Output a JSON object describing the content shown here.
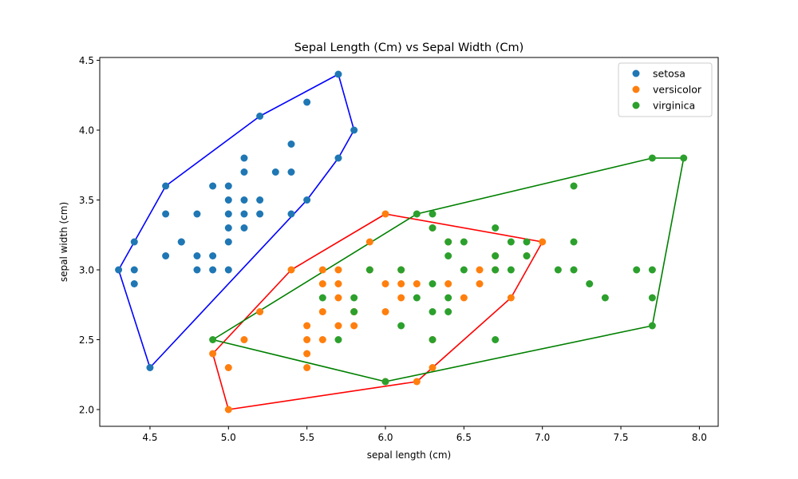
{
  "chart_data": {
    "type": "scatter",
    "title": "Sepal Length (Cm) vs Sepal Width (Cm)",
    "xlabel": "sepal length (cm)",
    "ylabel": "sepal width (cm)",
    "xlim": [
      4.18,
      8.12
    ],
    "ylim": [
      1.88,
      4.52
    ],
    "xticks": [
      4.5,
      5.0,
      5.5,
      6.0,
      6.5,
      7.0,
      7.5,
      8.0
    ],
    "xtick_labels": [
      "4.5",
      "5.0",
      "5.5",
      "6.0",
      "6.5",
      "7.0",
      "7.5",
      "8.0"
    ],
    "yticks": [
      2.0,
      2.5,
      3.0,
      3.5,
      4.0,
      4.5
    ],
    "ytick_labels": [
      "2.0",
      "2.5",
      "3.0",
      "3.5",
      "4.0",
      "4.5"
    ],
    "grid": false,
    "legend_position": "top-right",
    "series": [
      {
        "name": "setosa",
        "color": "#1f77b4",
        "hull_color": "#0000ff",
        "points": [
          [
            5.1,
            3.5
          ],
          [
            4.9,
            3.0
          ],
          [
            4.7,
            3.2
          ],
          [
            4.6,
            3.1
          ],
          [
            5.0,
            3.6
          ],
          [
            5.4,
            3.9
          ],
          [
            4.6,
            3.4
          ],
          [
            5.0,
            3.4
          ],
          [
            4.4,
            2.9
          ],
          [
            4.9,
            3.1
          ],
          [
            5.4,
            3.7
          ],
          [
            4.8,
            3.4
          ],
          [
            4.8,
            3.0
          ],
          [
            4.3,
            3.0
          ],
          [
            5.8,
            4.0
          ],
          [
            5.7,
            4.4
          ],
          [
            5.1,
            3.8
          ],
          [
            5.7,
            3.8
          ],
          [
            5.4,
            3.4
          ],
          [
            5.1,
            3.7
          ],
          [
            4.6,
            3.6
          ],
          [
            5.1,
            3.3
          ],
          [
            4.8,
            3.1
          ],
          [
            5.0,
            3.0
          ],
          [
            5.0,
            3.5
          ],
          [
            5.2,
            3.5
          ],
          [
            5.2,
            3.4
          ],
          [
            4.7,
            3.2
          ],
          [
            5.2,
            4.1
          ],
          [
            5.5,
            4.2
          ],
          [
            5.5,
            3.5
          ],
          [
            4.4,
            3.0
          ],
          [
            4.5,
            2.3
          ],
          [
            5.0,
            3.3
          ],
          [
            5.3,
            3.7
          ],
          [
            4.4,
            3.2
          ],
          [
            5.1,
            3.4
          ],
          [
            4.9,
            3.6
          ],
          [
            5.0,
            3.2
          ]
        ],
        "hull": [
          [
            4.3,
            3.0
          ],
          [
            4.5,
            2.3
          ],
          [
            5.5,
            3.5
          ],
          [
            5.7,
            3.8
          ],
          [
            5.8,
            4.0
          ],
          [
            5.7,
            4.4
          ],
          [
            5.2,
            4.1
          ],
          [
            4.6,
            3.6
          ],
          [
            4.4,
            3.2
          ],
          [
            4.3,
            3.0
          ]
        ]
      },
      {
        "name": "versicolor",
        "color": "#ff7f0e",
        "hull_color": "#ff0000",
        "points": [
          [
            7.0,
            3.2
          ],
          [
            6.4,
            3.2
          ],
          [
            6.9,
            3.1
          ],
          [
            5.5,
            2.3
          ],
          [
            6.5,
            2.8
          ],
          [
            5.7,
            2.8
          ],
          [
            6.3,
            3.3
          ],
          [
            4.9,
            2.4
          ],
          [
            6.6,
            2.9
          ],
          [
            5.2,
            2.7
          ],
          [
            5.0,
            2.0
          ],
          [
            5.9,
            3.0
          ],
          [
            6.0,
            2.2
          ],
          [
            6.1,
            2.9
          ],
          [
            5.6,
            2.9
          ],
          [
            6.7,
            3.1
          ],
          [
            5.6,
            3.0
          ],
          [
            5.8,
            2.7
          ],
          [
            6.2,
            2.2
          ],
          [
            5.6,
            2.5
          ],
          [
            5.9,
            3.2
          ],
          [
            6.1,
            2.8
          ],
          [
            6.3,
            2.5
          ],
          [
            6.4,
            2.9
          ],
          [
            6.6,
            3.0
          ],
          [
            6.8,
            2.8
          ],
          [
            6.7,
            3.0
          ],
          [
            6.0,
            2.9
          ],
          [
            5.7,
            2.6
          ],
          [
            5.5,
            2.4
          ],
          [
            5.8,
            2.7
          ],
          [
            6.0,
            2.7
          ],
          [
            5.4,
            3.0
          ],
          [
            6.0,
            3.4
          ],
          [
            6.3,
            2.3
          ],
          [
            5.5,
            2.5
          ],
          [
            5.5,
            2.6
          ],
          [
            6.1,
            3.0
          ],
          [
            5.8,
            2.6
          ],
          [
            5.0,
            2.3
          ],
          [
            5.6,
            2.7
          ],
          [
            5.7,
            3.0
          ],
          [
            5.7,
            2.9
          ],
          [
            6.2,
            2.9
          ],
          [
            5.1,
            2.5
          ]
        ],
        "hull": [
          [
            4.9,
            2.4
          ],
          [
            5.0,
            2.0
          ],
          [
            6.2,
            2.2
          ],
          [
            6.3,
            2.3
          ],
          [
            6.8,
            2.8
          ],
          [
            7.0,
            3.2
          ],
          [
            6.0,
            3.4
          ],
          [
            5.4,
            3.0
          ],
          [
            4.9,
            2.4
          ]
        ]
      },
      {
        "name": "virginica",
        "color": "#2ca02c",
        "hull_color": "#008000",
        "points": [
          [
            6.3,
            3.3
          ],
          [
            5.8,
            2.7
          ],
          [
            7.1,
            3.0
          ],
          [
            6.3,
            2.9
          ],
          [
            6.5,
            3.0
          ],
          [
            7.6,
            3.0
          ],
          [
            4.9,
            2.5
          ],
          [
            7.3,
            2.9
          ],
          [
            6.7,
            2.5
          ],
          [
            7.2,
            3.6
          ],
          [
            6.5,
            3.2
          ],
          [
            6.4,
            2.7
          ],
          [
            6.8,
            3.0
          ],
          [
            5.7,
            2.5
          ],
          [
            5.8,
            2.8
          ],
          [
            6.4,
            3.2
          ],
          [
            7.7,
            3.8
          ],
          [
            7.7,
            2.6
          ],
          [
            6.0,
            2.2
          ],
          [
            6.9,
            3.2
          ],
          [
            5.6,
            2.8
          ],
          [
            7.7,
            2.8
          ],
          [
            6.3,
            2.7
          ],
          [
            6.7,
            3.3
          ],
          [
            7.2,
            3.2
          ],
          [
            6.2,
            2.8
          ],
          [
            6.1,
            3.0
          ],
          [
            6.4,
            2.8
          ],
          [
            7.2,
            3.0
          ],
          [
            7.4,
            2.8
          ],
          [
            7.9,
            3.8
          ],
          [
            6.1,
            2.6
          ],
          [
            7.7,
            3.0
          ],
          [
            6.3,
            3.4
          ],
          [
            6.4,
            3.1
          ],
          [
            6.9,
            3.1
          ],
          [
            6.7,
            3.1
          ],
          [
            6.8,
            3.2
          ],
          [
            6.7,
            3.0
          ],
          [
            6.3,
            2.5
          ],
          [
            6.2,
            3.4
          ],
          [
            5.9,
            3.0
          ]
        ],
        "hull": [
          [
            4.9,
            2.5
          ],
          [
            6.0,
            2.2
          ],
          [
            7.7,
            2.6
          ],
          [
            7.9,
            3.8
          ],
          [
            7.7,
            3.8
          ],
          [
            6.2,
            3.4
          ],
          [
            4.9,
            2.5
          ]
        ]
      }
    ]
  }
}
